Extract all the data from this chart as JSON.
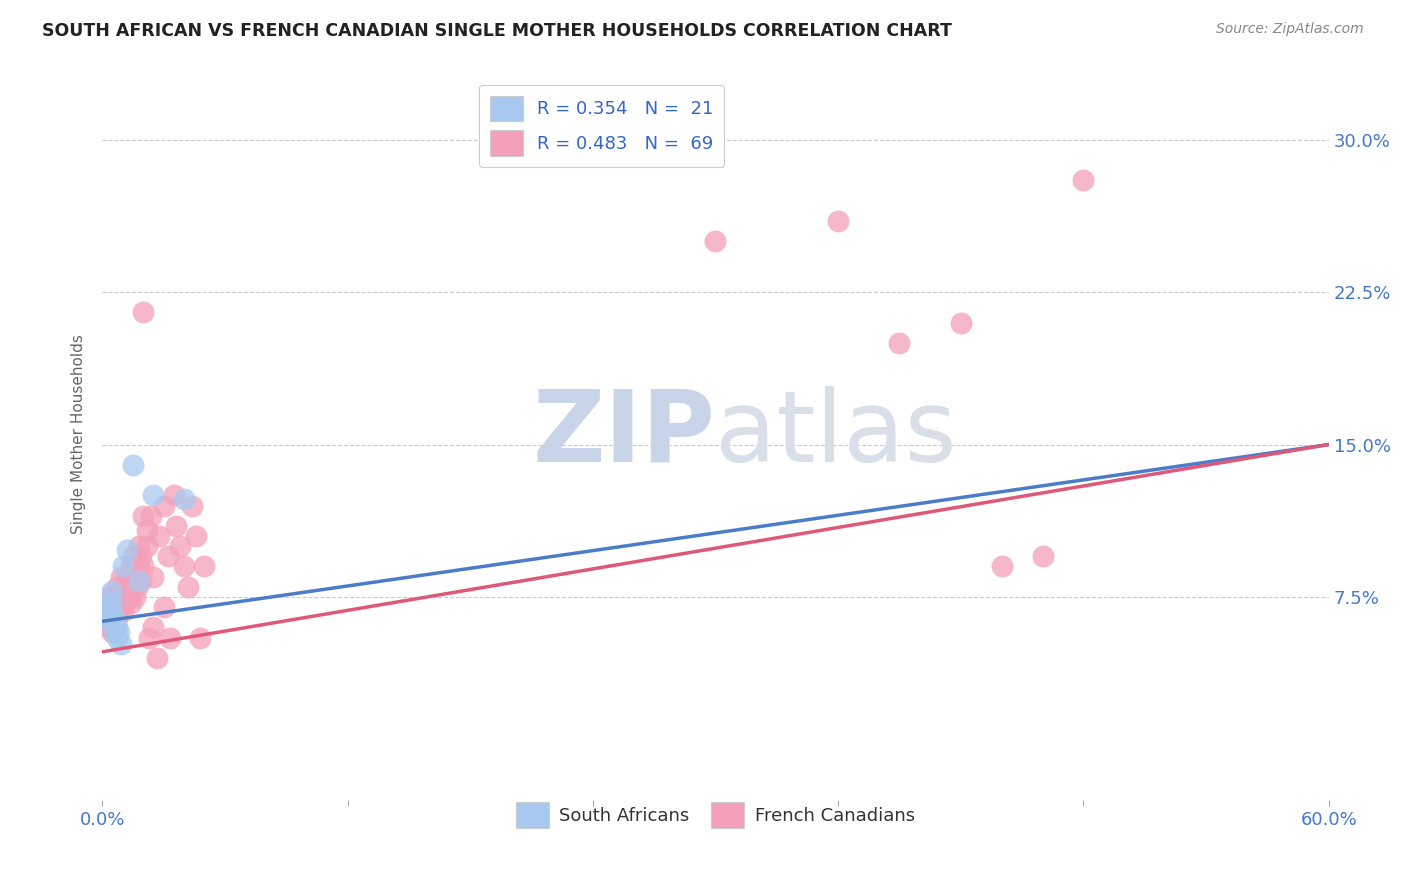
{
  "title": "SOUTH AFRICAN VS FRENCH CANADIAN SINGLE MOTHER HOUSEHOLDS CORRELATION CHART",
  "source": "Source: ZipAtlas.com",
  "ylabel": "Single Mother Households",
  "ytick_labels": [
    "7.5%",
    "15.0%",
    "22.5%",
    "30.0%"
  ],
  "ytick_values": [
    0.075,
    0.15,
    0.225,
    0.3
  ],
  "xlim": [
    0.0,
    0.6
  ],
  "ylim": [
    -0.025,
    0.335
  ],
  "legend_r1": "R = 0.354   N =  21",
  "legend_r2": "R = 0.483   N =  69",
  "blue_color": "#A8C8F0",
  "pink_color": "#F4A0B8",
  "blue_line_color": "#4A7CC8",
  "pink_line_color": "#E05878",
  "blue_line": [
    [
      0.0,
      0.063
    ],
    [
      0.6,
      0.15
    ]
  ],
  "pink_line": [
    [
      0.0,
      0.048
    ],
    [
      0.6,
      0.15
    ]
  ],
  "blue_scatter": [
    [
      0.001,
      0.069
    ],
    [
      0.002,
      0.068
    ],
    [
      0.002,
      0.072
    ],
    [
      0.003,
      0.065
    ],
    [
      0.003,
      0.07
    ],
    [
      0.004,
      0.068
    ],
    [
      0.004,
      0.063
    ],
    [
      0.005,
      0.072
    ],
    [
      0.005,
      0.078
    ],
    [
      0.006,
      0.058
    ],
    [
      0.006,
      0.065
    ],
    [
      0.007,
      0.06
    ],
    [
      0.007,
      0.055
    ],
    [
      0.008,
      0.058
    ],
    [
      0.009,
      0.052
    ],
    [
      0.01,
      0.09
    ],
    [
      0.012,
      0.098
    ],
    [
      0.015,
      0.14
    ],
    [
      0.018,
      0.083
    ],
    [
      0.025,
      0.125
    ],
    [
      0.04,
      0.123
    ]
  ],
  "pink_scatter": [
    [
      0.001,
      0.068
    ],
    [
      0.002,
      0.071
    ],
    [
      0.002,
      0.063
    ],
    [
      0.003,
      0.075
    ],
    [
      0.003,
      0.06
    ],
    [
      0.003,
      0.065
    ],
    [
      0.004,
      0.069
    ],
    [
      0.004,
      0.072
    ],
    [
      0.005,
      0.058
    ],
    [
      0.005,
      0.068
    ],
    [
      0.006,
      0.075
    ],
    [
      0.006,
      0.063
    ],
    [
      0.007,
      0.08
    ],
    [
      0.007,
      0.065
    ],
    [
      0.008,
      0.072
    ],
    [
      0.008,
      0.076
    ],
    [
      0.009,
      0.085
    ],
    [
      0.009,
      0.07
    ],
    [
      0.01,
      0.078
    ],
    [
      0.01,
      0.068
    ],
    [
      0.011,
      0.08
    ],
    [
      0.011,
      0.072
    ],
    [
      0.012,
      0.085
    ],
    [
      0.012,
      0.078
    ],
    [
      0.013,
      0.083
    ],
    [
      0.013,
      0.075
    ],
    [
      0.014,
      0.072
    ],
    [
      0.014,
      0.09
    ],
    [
      0.015,
      0.095
    ],
    [
      0.015,
      0.08
    ],
    [
      0.016,
      0.085
    ],
    [
      0.016,
      0.075
    ],
    [
      0.017,
      0.09
    ],
    [
      0.017,
      0.08
    ],
    [
      0.018,
      0.09
    ],
    [
      0.018,
      0.1
    ],
    [
      0.019,
      0.095
    ],
    [
      0.019,
      0.083
    ],
    [
      0.02,
      0.115
    ],
    [
      0.02,
      0.09
    ],
    [
      0.022,
      0.1
    ],
    [
      0.022,
      0.108
    ],
    [
      0.023,
      0.055
    ],
    [
      0.024,
      0.115
    ],
    [
      0.025,
      0.085
    ],
    [
      0.025,
      0.06
    ],
    [
      0.027,
      0.045
    ],
    [
      0.028,
      0.105
    ],
    [
      0.03,
      0.12
    ],
    [
      0.03,
      0.07
    ],
    [
      0.032,
      0.095
    ],
    [
      0.033,
      0.055
    ],
    [
      0.035,
      0.125
    ],
    [
      0.036,
      0.11
    ],
    [
      0.038,
      0.1
    ],
    [
      0.04,
      0.09
    ],
    [
      0.042,
      0.08
    ],
    [
      0.044,
      0.12
    ],
    [
      0.046,
      0.105
    ],
    [
      0.048,
      0.055
    ],
    [
      0.05,
      0.09
    ],
    [
      0.02,
      0.215
    ],
    [
      0.3,
      0.25
    ],
    [
      0.36,
      0.26
    ],
    [
      0.39,
      0.2
    ],
    [
      0.42,
      0.21
    ],
    [
      0.44,
      0.09
    ],
    [
      0.46,
      0.095
    ],
    [
      0.48,
      0.28
    ]
  ],
  "watermark_zip": "ZIP",
  "watermark_atlas": "atlas",
  "watermark_color": "#C8D4E8",
  "background_color": "#FFFFFF",
  "grid_color": "#CCCCCC",
  "grid_linestyle": "--"
}
